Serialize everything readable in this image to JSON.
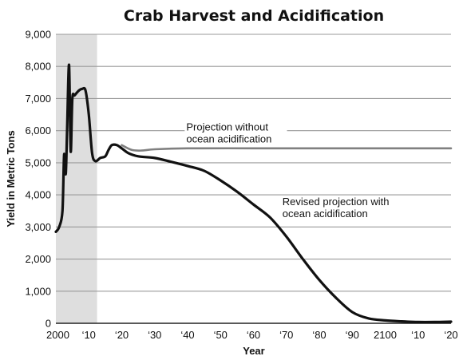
{
  "chart_data": {
    "type": "line",
    "title": "Crab Harvest and Acidification",
    "xlabel": "Year",
    "ylabel": "Yield in Metric Tons",
    "xlim": [
      2000,
      2120
    ],
    "ylim": [
      0,
      9000
    ],
    "grid": {
      "horizontal": true,
      "vertical": false
    },
    "x_ticks": [
      {
        "value": 2000,
        "label": "2000"
      },
      {
        "value": 2010,
        "label": "‘10"
      },
      {
        "value": 2020,
        "label": "‘20"
      },
      {
        "value": 2030,
        "label": "‘30"
      },
      {
        "value": 2040,
        "label": "‘40"
      },
      {
        "value": 2050,
        "label": "‘50"
      },
      {
        "value": 2060,
        "label": "‘60"
      },
      {
        "value": 2070,
        "label": "‘70"
      },
      {
        "value": 2080,
        "label": "‘80"
      },
      {
        "value": 2090,
        "label": "‘90"
      },
      {
        "value": 2100,
        "label": "2100"
      },
      {
        "value": 2110,
        "label": "‘10"
      },
      {
        "value": 2120,
        "label": "‘20"
      }
    ],
    "y_ticks": [
      {
        "value": 0,
        "label": "0"
      },
      {
        "value": 1000,
        "label": "1,000"
      },
      {
        "value": 2000,
        "label": "2,000"
      },
      {
        "value": 3000,
        "label": "3,000"
      },
      {
        "value": 4000,
        "label": "4,000"
      },
      {
        "value": 5000,
        "label": "5,000"
      },
      {
        "value": 6000,
        "label": "6,000"
      },
      {
        "value": 7000,
        "label": "7,000"
      },
      {
        "value": 8000,
        "label": "8,000"
      },
      {
        "value": 9000,
        "label": "9,000"
      }
    ],
    "shaded_region": {
      "x": [
        2000,
        2012.5
      ],
      "color": "#dedede"
    },
    "series": [
      {
        "name": "Projection without ocean acidification",
        "color": "#808080",
        "x": [
          2020,
          2023,
          2026,
          2030,
          2040,
          2060,
          2080,
          2100,
          2120
        ],
        "values": [
          5550,
          5400,
          5380,
          5420,
          5450,
          5450,
          5450,
          5450,
          5450
        ]
      },
      {
        "name": "Revised projection with ocean acidification",
        "color": "#111111",
        "x": [
          2000,
          2001,
          2002,
          2002.5,
          2003,
          2003.4,
          2004,
          2004.5,
          2005,
          2005.7,
          2007,
          2008,
          2009,
          2010,
          2011,
          2012,
          2013.5,
          2015,
          2016,
          2017,
          2018.5,
          2020,
          2022,
          2025,
          2030,
          2035,
          2040,
          2045,
          2050,
          2055,
          2060,
          2065,
          2070,
          2075,
          2080,
          2085,
          2090,
          2095,
          2100,
          2105,
          2110,
          2115,
          2120
        ],
        "values": [
          2850,
          3000,
          3500,
          5250,
          4650,
          6000,
          8050,
          5350,
          7000,
          7100,
          7250,
          7300,
          7250,
          6500,
          5300,
          5050,
          5150,
          5200,
          5400,
          5550,
          5550,
          5450,
          5300,
          5200,
          5150,
          5030,
          4900,
          4750,
          4450,
          4100,
          3700,
          3300,
          2700,
          2000,
          1350,
          800,
          350,
          150,
          90,
          60,
          40,
          40,
          50
        ]
      }
    ],
    "annotations": [
      {
        "lines": [
          "Projection without",
          "ocean acidification"
        ],
        "anchor": {
          "x": 2039.6,
          "y": 6000
        }
      },
      {
        "lines": [
          "Revised projection with",
          "ocean acidification"
        ],
        "anchor": {
          "x": 2068.8,
          "y": 3680
        }
      }
    ]
  }
}
